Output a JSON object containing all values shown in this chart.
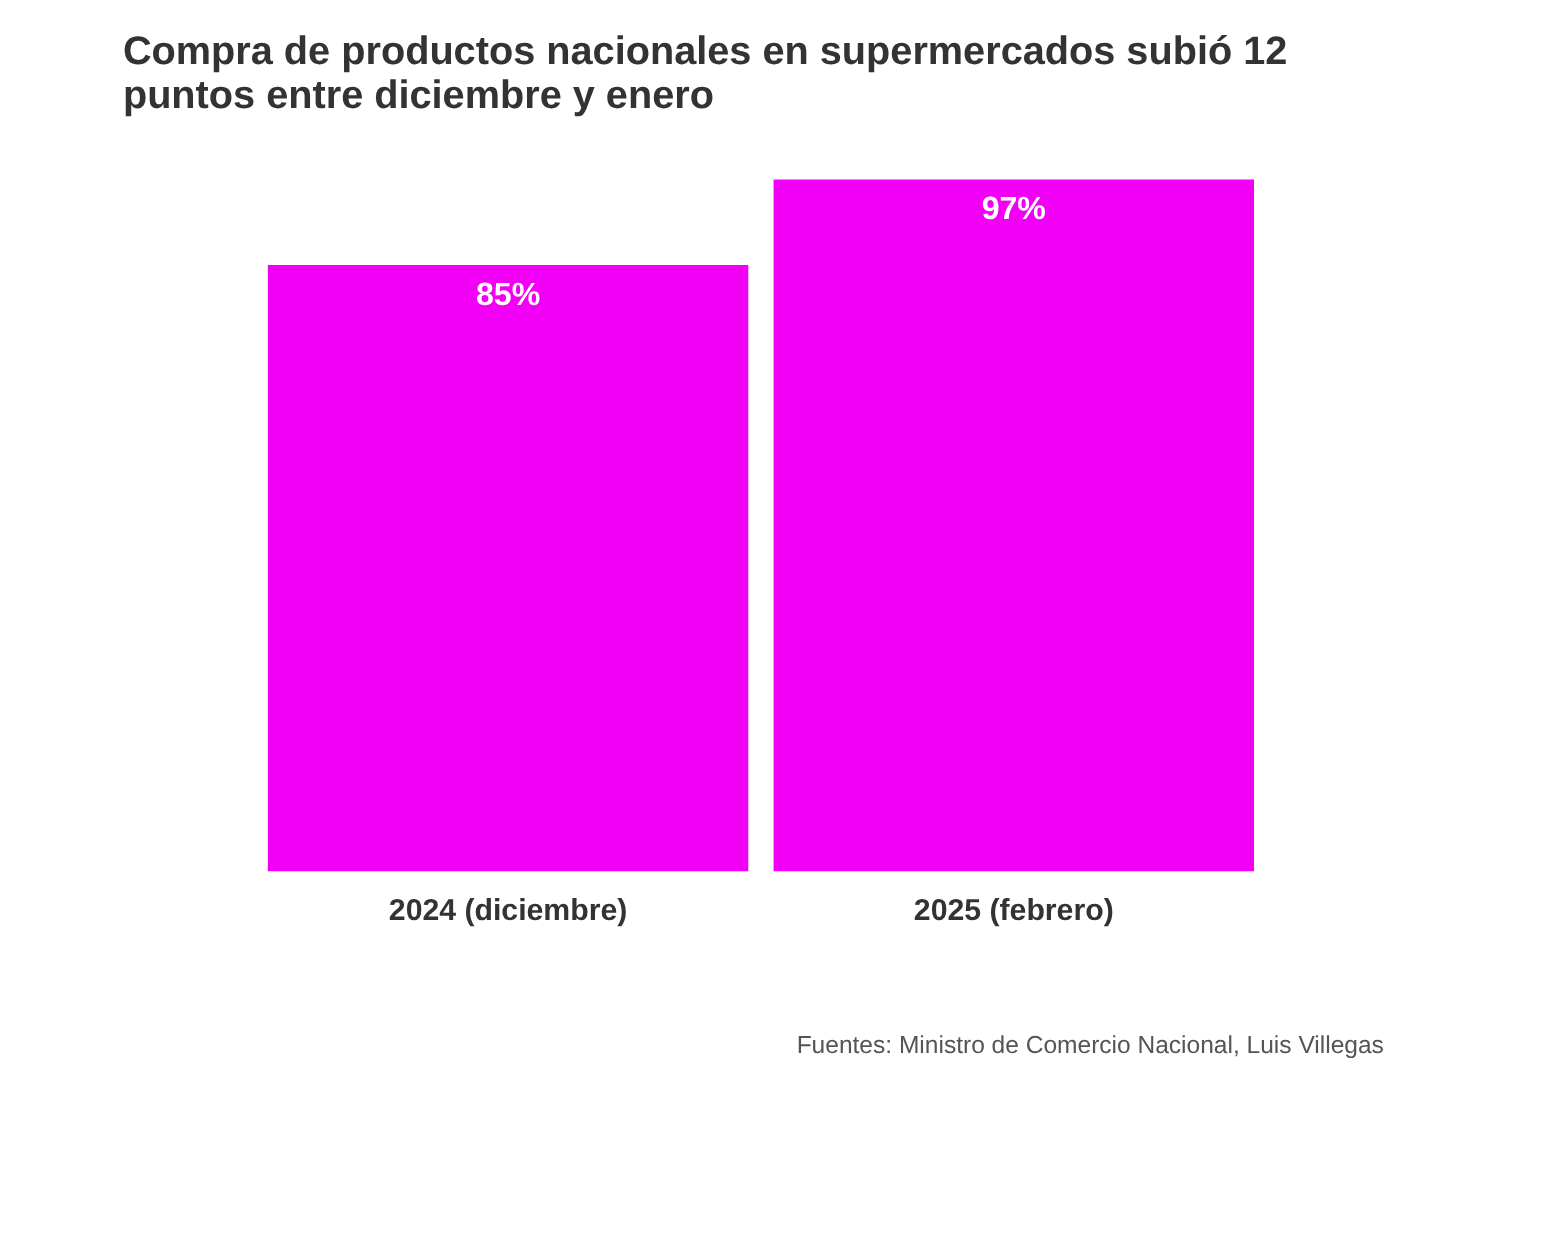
{
  "chart_data": {
    "type": "bar",
    "title": "Compra de productos nacionales en supermercados subió 12 puntos entre diciembre y enero",
    "categories": [
      "2024 (diciembre)",
      "2025 (febrero)"
    ],
    "values": [
      85,
      97
    ],
    "color": "#f200f5",
    "value_labels": [
      "85%",
      "97%"
    ],
    "annotations": [
      "Fuentes: Ministro de Comercio Nacional, Luis Villegas"
    ],
    "grid": false
  }
}
